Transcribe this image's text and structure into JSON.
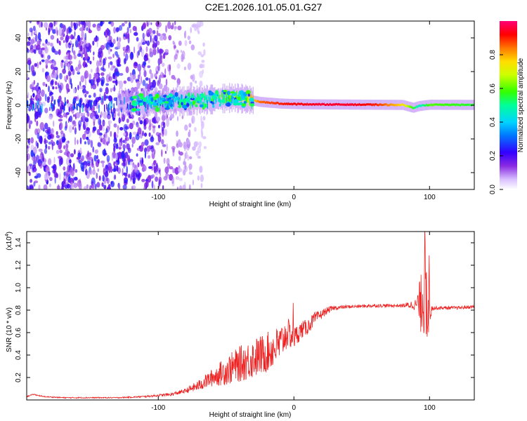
{
  "title": "C2E1.2026.101.05.01.G27",
  "colors": {
    "snr_line": "#ee2222",
    "axis": "#000000",
    "spectrum_base": "#6a00e8"
  },
  "chart_data": [
    {
      "type": "heatmap",
      "name": "spectrogram",
      "xlabel": "Height of straight line (km)",
      "ylabel": "Frequency (Hz)",
      "xlim": [
        -197,
        133
      ],
      "ylim": [
        -50,
        50
      ],
      "x_ticks": [
        -100,
        0,
        100
      ],
      "x_tick_labels": [
        "-100",
        "0",
        "100"
      ],
      "y_ticks": [
        -40,
        -20,
        0,
        20,
        40
      ],
      "y_tick_labels": [
        "-40",
        "-20",
        "0",
        "20",
        "40"
      ],
      "colorbar": {
        "label": "Normalized spectral amplitude",
        "range": [
          0,
          1
        ],
        "ticks": [
          0.0,
          0.2,
          0.4,
          0.6,
          0.8
        ],
        "tick_labels": [
          "0.0",
          "0.2",
          "0.4",
          "0.6",
          "0.8"
        ]
      },
      "ridge": {
        "description_values": "dominant frequency ridge vs height",
        "x": [
          -120,
          -100,
          -80,
          -60,
          -45,
          -35,
          -25,
          -10,
          0,
          20,
          40,
          60,
          80,
          88,
          92,
          100,
          133
        ],
        "frequency": [
          1.5,
          1.8,
          2.5,
          3.5,
          4.5,
          3.5,
          2,
          1,
          0.7,
          0.5,
          0.4,
          0.3,
          0.2,
          -1.5,
          -0.5,
          0.3,
          0.2
        ],
        "amplitude": [
          0.35,
          0.45,
          0.5,
          0.55,
          0.6,
          0.7,
          0.85,
          0.9,
          0.92,
          0.95,
          0.95,
          0.9,
          0.75,
          0.55,
          0.45,
          0.6,
          0.55
        ]
      },
      "noise_region_x": [
        -197,
        -80
      ]
    },
    {
      "type": "line",
      "name": "snr",
      "xlabel": "Height of straight line (km)",
      "ylabel": "SNR (10 * v/v)",
      "y_multiplier_label": "(x10",
      "y_multiplier_exp": "4",
      "xlim": [
        -197,
        133
      ],
      "ylim": [
        0,
        1.5
      ],
      "x_ticks": [
        -100,
        0,
        100
      ],
      "x_tick_labels": [
        "-100",
        "0",
        "100"
      ],
      "y_ticks": [
        0.2,
        0.4,
        0.6,
        0.8,
        1.0,
        1.2,
        1.4
      ],
      "y_tick_labels": [
        "0.2",
        "0.4",
        "0.6",
        "0.8",
        "1.0",
        "1.2",
        "1.4"
      ],
      "series": [
        {
          "name": "SNR",
          "x": [
            -197,
            -192,
            -185,
            -170,
            -150,
            -130,
            -110,
            -100,
            -90,
            -80,
            -70,
            -60,
            -50,
            -40,
            -30,
            -20,
            -10,
            -5,
            0,
            5,
            10,
            15,
            20,
            25,
            30,
            40,
            60,
            80,
            90,
            95,
            97,
            99,
            102,
            110,
            120,
            133
          ],
          "y": [
            0.03,
            0.05,
            0.03,
            0.02,
            0.02,
            0.02,
            0.03,
            0.04,
            0.05,
            0.08,
            0.13,
            0.2,
            0.26,
            0.32,
            0.37,
            0.42,
            0.5,
            0.6,
            0.55,
            0.62,
            0.65,
            0.72,
            0.76,
            0.8,
            0.82,
            0.83,
            0.84,
            0.84,
            0.85,
            0.85,
            0.84,
            0.83,
            0.82,
            0.82,
            0.82,
            0.83
          ],
          "noise": [
            0.005,
            0.005,
            0.005,
            0.005,
            0.005,
            0.005,
            0.008,
            0.01,
            0.015,
            0.02,
            0.05,
            0.08,
            0.13,
            0.16,
            0.18,
            0.18,
            0.17,
            0.14,
            0.1,
            0.08,
            0.07,
            0.06,
            0.04,
            0.03,
            0.02,
            0.015,
            0.015,
            0.015,
            0.05,
            0.35,
            0.4,
            0.3,
            0.02,
            0.015,
            0.015,
            0.015
          ]
        }
      ]
    }
  ]
}
